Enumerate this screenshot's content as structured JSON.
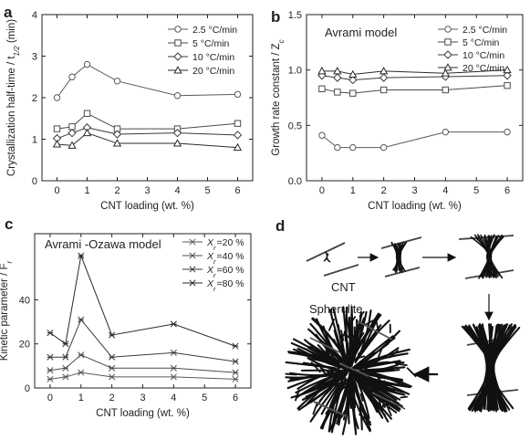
{
  "colors": {
    "series": [
      "#5a5a5a",
      "#4a4a4a",
      "#3a3a3a",
      "#2a2a2a"
    ],
    "axis": "#222222",
    "fiber": "#111111",
    "cnt": "#555555"
  },
  "chart_data": [
    {
      "id": "a",
      "panel_letter": "a",
      "type": "line",
      "xlabel": "CNT loading (wt. %)",
      "ylabel": "Crystallization half-time / t_1/2 (min)",
      "ylabel_parts": {
        "main": "Crystallization half-time / t",
        "sub": "1/2",
        "tail": " (min)"
      },
      "xlim": [
        -0.5,
        6.5
      ],
      "ylim": [
        0,
        4
      ],
      "xticks": [
        0,
        1,
        2,
        3,
        4,
        5,
        6
      ],
      "yticks": [
        0,
        1,
        2,
        3,
        4
      ],
      "grid": false,
      "legend_placement": "top-right",
      "x": [
        0,
        0.5,
        1,
        2,
        4,
        6
      ],
      "series": [
        {
          "name": "2.5 °C/min",
          "marker": "circle",
          "values": [
            2.0,
            2.5,
            2.8,
            2.4,
            2.05,
            2.08
          ]
        },
        {
          "name": "5 °C/min",
          "marker": "square",
          "values": [
            1.25,
            1.3,
            1.62,
            1.25,
            1.25,
            1.38
          ]
        },
        {
          "name": "10 °C/min",
          "marker": "diamond",
          "values": [
            1.02,
            1.15,
            1.28,
            1.12,
            1.15,
            1.1
          ]
        },
        {
          "name": "20 °C/min",
          "marker": "triangle",
          "values": [
            0.88,
            0.85,
            1.15,
            0.9,
            0.9,
            0.8
          ]
        }
      ]
    },
    {
      "id": "b",
      "panel_letter": "b",
      "inset_title": "Avrami model",
      "type": "line",
      "xlabel": "CNT loading (wt. %)",
      "ylabel": "Growth rate constant / Z_c",
      "ylabel_parts": {
        "main": "Growth rate constant / Z",
        "sub": "c",
        "tail": ""
      },
      "xlim": [
        -0.5,
        6.5
      ],
      "ylim": [
        0,
        1.5
      ],
      "xticks": [
        0,
        1,
        2,
        3,
        4,
        5,
        6
      ],
      "yticks": [
        0.0,
        0.5,
        1.0,
        1.5
      ],
      "ytick_decimals": 1,
      "grid": false,
      "legend_placement": "top-right",
      "x": [
        0,
        0.5,
        1,
        2,
        4,
        6
      ],
      "series": [
        {
          "name": "2.5 °C/min",
          "marker": "circle",
          "values": [
            0.41,
            0.3,
            0.3,
            0.3,
            0.44,
            0.44
          ]
        },
        {
          "name": "5 °C/min",
          "marker": "square",
          "values": [
            0.83,
            0.8,
            0.79,
            0.82,
            0.82,
            0.86
          ]
        },
        {
          "name": "10 °C/min",
          "marker": "diamond",
          "values": [
            0.95,
            0.93,
            0.91,
            0.93,
            0.94,
            0.95
          ]
        },
        {
          "name": "20 °C/min",
          "marker": "triangle",
          "values": [
            0.99,
            0.99,
            0.96,
            0.99,
            0.97,
            1.0
          ]
        }
      ]
    },
    {
      "id": "c",
      "panel_letter": "c",
      "inset_title": "Avrami -Ozawa model",
      "type": "line",
      "xlabel": "CNT loading (wt. %)",
      "ylabel": "Kinetic parameter / F_r",
      "ylabel_parts": {
        "main": "Kinetic parameter  / F",
        "sub": "r",
        "tail": ""
      },
      "xlim": [
        -0.5,
        6.5
      ],
      "ylim": [
        0,
        70
      ],
      "xticks": [
        0,
        1,
        2,
        3,
        4,
        5,
        6
      ],
      "yticks": [
        0,
        20,
        40
      ],
      "grid": false,
      "legend_placement": "top-right",
      "x": [
        0,
        0.5,
        1,
        2,
        4,
        6
      ],
      "series": [
        {
          "name": "X_r=20 %",
          "label_var": "X",
          "label_sub": "r",
          "label_tail": "=20 %",
          "marker": "x",
          "values": [
            4,
            5,
            7,
            5,
            5,
            4
          ]
        },
        {
          "name": "X_r=40 %",
          "label_var": "X",
          "label_sub": "r",
          "label_tail": "=40 %",
          "marker": "x",
          "values": [
            8,
            9,
            15,
            9,
            9,
            7
          ]
        },
        {
          "name": "X_r=60 %",
          "label_var": "X",
          "label_sub": "r",
          "label_tail": "=60 %",
          "marker": "x",
          "values": [
            14,
            14,
            31,
            14,
            16,
            12
          ]
        },
        {
          "name": "X_r=80 %",
          "label_var": "X",
          "label_sub": "r",
          "label_tail": "=80 %",
          "marker": "x",
          "values": [
            25,
            20,
            60,
            24,
            29,
            19
          ]
        }
      ]
    }
  ],
  "diagram": {
    "panel_letter": "d",
    "cnt_label": "CNT",
    "spherulite_label": "Spherulite"
  }
}
